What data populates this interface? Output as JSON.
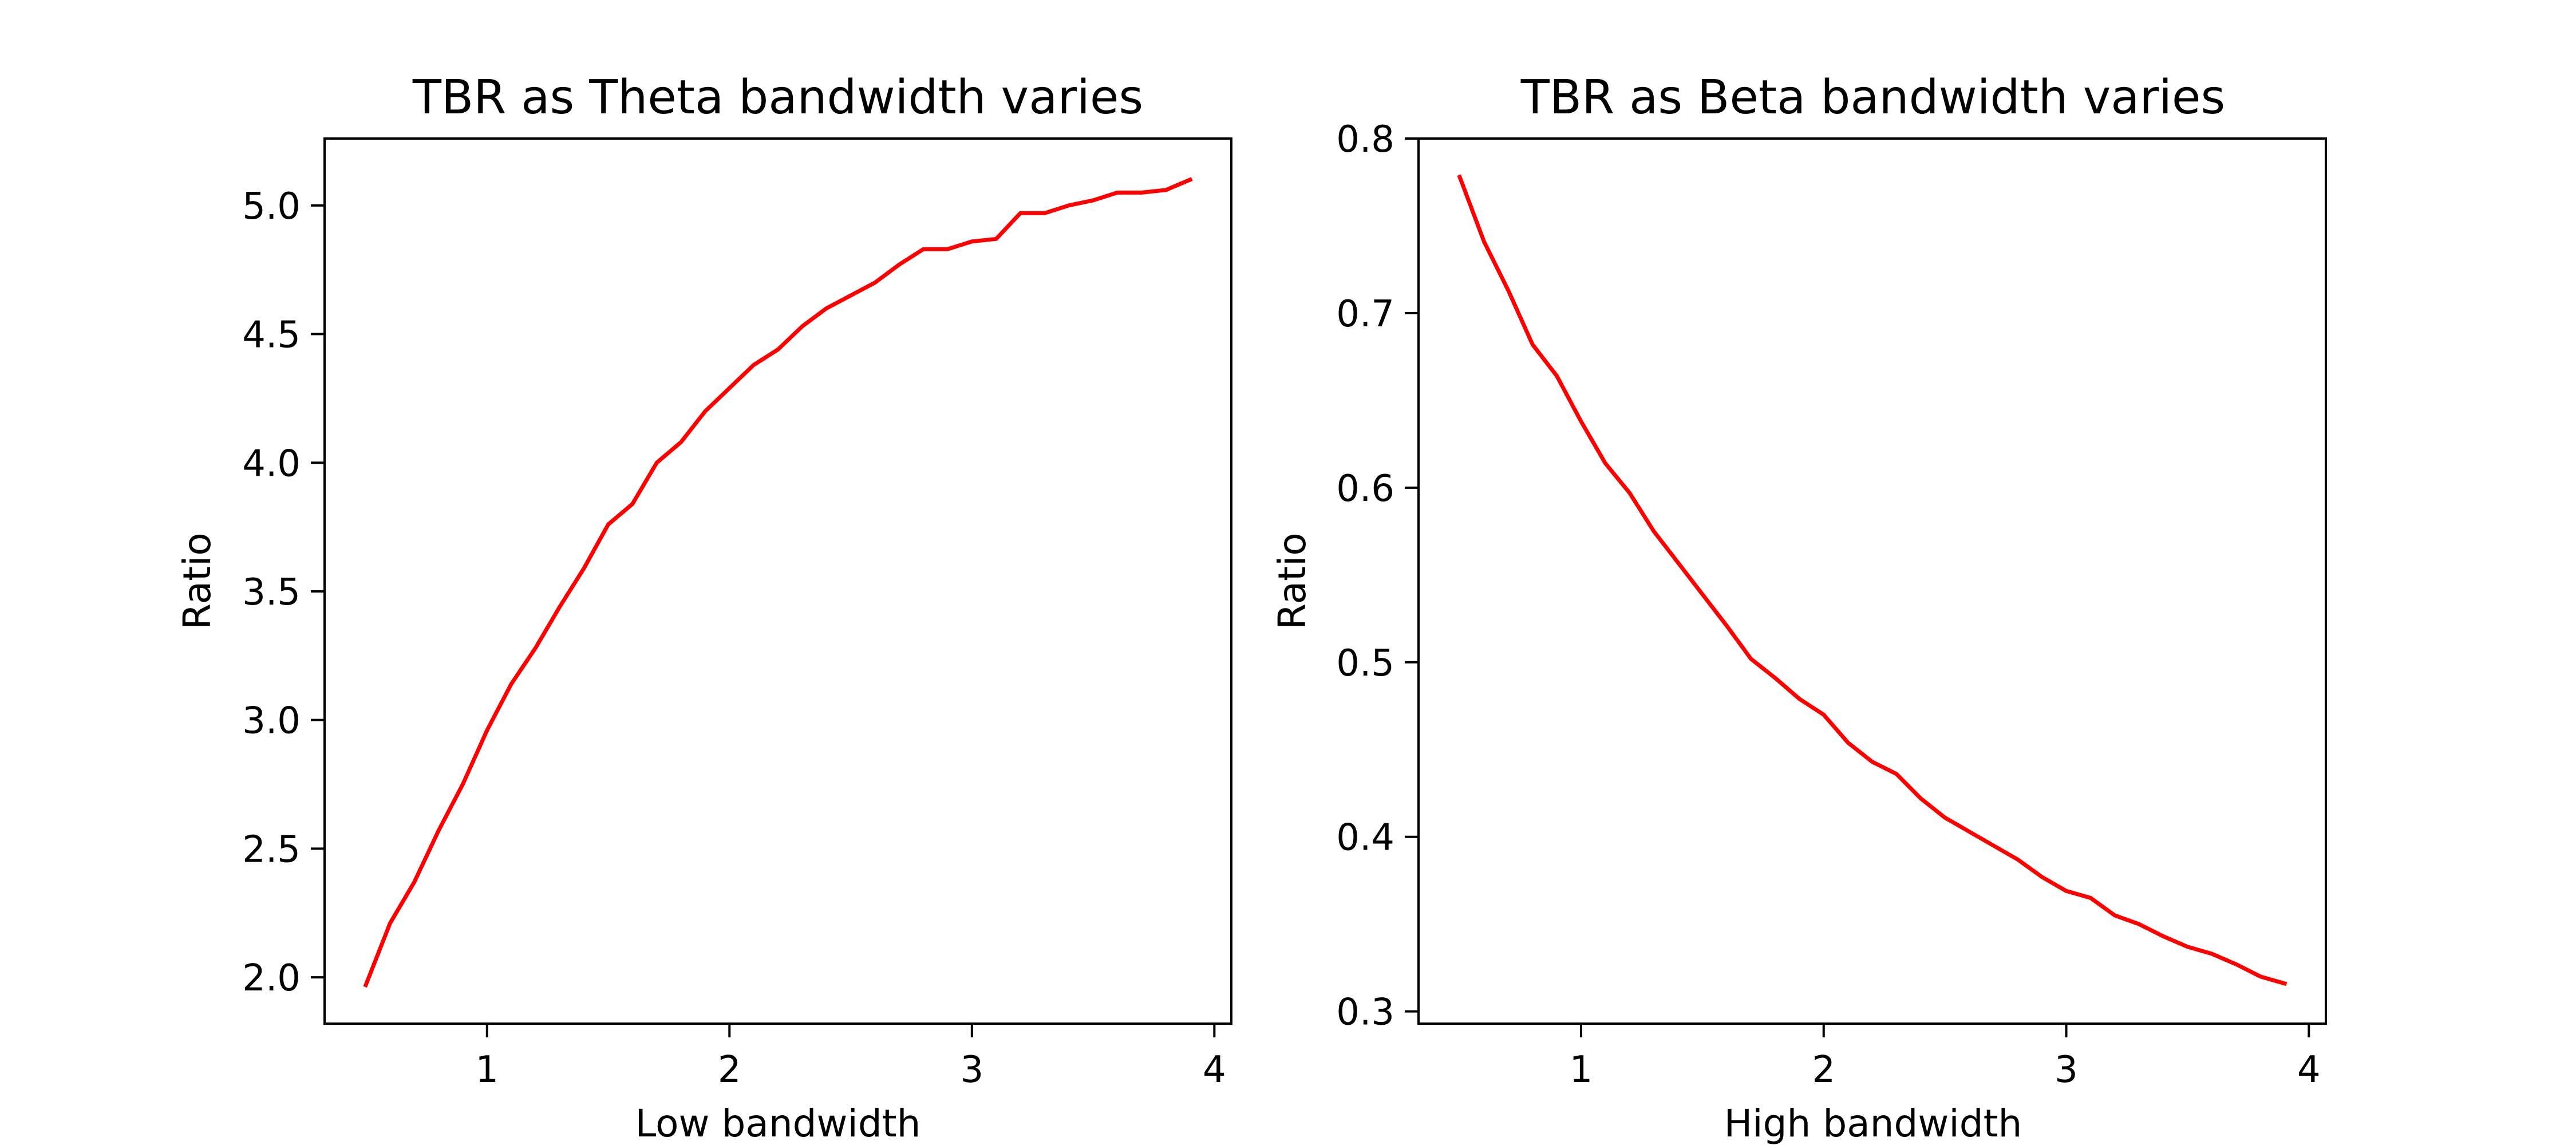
{
  "chart_data": [
    {
      "type": "line",
      "title": "TBR as Theta bandwidth varies",
      "xlabel": "Low bandwidth",
      "ylabel": "Ratio",
      "xlim": [
        0.33,
        4.07
      ],
      "ylim": [
        1.82,
        5.26
      ],
      "xticks": [
        1,
        2,
        3,
        4
      ],
      "xtick_labels": [
        "1",
        "2",
        "3",
        "4"
      ],
      "yticks": [
        2.0,
        2.5,
        3.0,
        3.5,
        4.0,
        4.5,
        5.0
      ],
      "ytick_labels": [
        "2.0",
        "2.5",
        "3.0",
        "3.5",
        "4.0",
        "4.5",
        "5.0"
      ],
      "grid": false,
      "series": [
        {
          "color": "#ff0000",
          "x": [
            0.5,
            0.6,
            0.7,
            0.8,
            0.9,
            1.0,
            1.1,
            1.2,
            1.3,
            1.4,
            1.5,
            1.6,
            1.7,
            1.8,
            1.9,
            2.0,
            2.1,
            2.2,
            2.3,
            2.4,
            2.5,
            2.6,
            2.7,
            2.8,
            2.9,
            3.0,
            3.1,
            3.2,
            3.3,
            3.4,
            3.5,
            3.6,
            3.7,
            3.8,
            3.9
          ],
          "y": [
            1.97,
            2.21,
            2.37,
            2.57,
            2.75,
            2.96,
            3.14,
            3.28,
            3.44,
            3.59,
            3.76,
            3.84,
            4.0,
            4.08,
            4.2,
            4.29,
            4.38,
            4.44,
            4.53,
            4.6,
            4.65,
            4.7,
            4.77,
            4.83,
            4.83,
            4.86,
            4.87,
            4.97,
            4.97,
            5.0,
            5.02,
            5.05,
            5.05,
            5.06,
            5.1
          ]
        }
      ]
    },
    {
      "type": "line",
      "title": "TBR as Beta bandwidth varies",
      "xlabel": "High bandwidth",
      "ylabel": "Ratio",
      "xlim": [
        0.33,
        4.07
      ],
      "ylim": [
        0.293,
        0.8
      ],
      "xticks": [
        1,
        2,
        3,
        4
      ],
      "xtick_labels": [
        "1",
        "2",
        "3",
        "4"
      ],
      "yticks": [
        0.3,
        0.4,
        0.5,
        0.6,
        0.7,
        0.8
      ],
      "ytick_labels": [
        "0.3",
        "0.4",
        "0.5",
        "0.6",
        "0.7",
        "0.8"
      ],
      "grid": false,
      "series": [
        {
          "color": "#ff0000",
          "x": [
            0.5,
            0.6,
            0.7,
            0.8,
            0.9,
            1.0,
            1.1,
            1.2,
            1.3,
            1.4,
            1.5,
            1.6,
            1.7,
            1.8,
            1.9,
            2.0,
            2.1,
            2.2,
            2.3,
            2.4,
            2.5,
            2.6,
            2.7,
            2.8,
            2.9,
            3.0,
            3.1,
            3.2,
            3.3,
            3.4,
            3.5,
            3.6,
            3.7,
            3.8,
            3.9
          ],
          "y": [
            0.778,
            0.741,
            0.713,
            0.682,
            0.664,
            0.638,
            0.614,
            0.597,
            0.575,
            0.557,
            0.539,
            0.521,
            0.502,
            0.491,
            0.479,
            0.47,
            0.454,
            0.443,
            0.436,
            0.422,
            0.411,
            0.403,
            0.395,
            0.387,
            0.377,
            0.369,
            0.365,
            0.355,
            0.35,
            0.343,
            0.337,
            0.333,
            0.327,
            0.32,
            0.316
          ]
        }
      ]
    }
  ]
}
